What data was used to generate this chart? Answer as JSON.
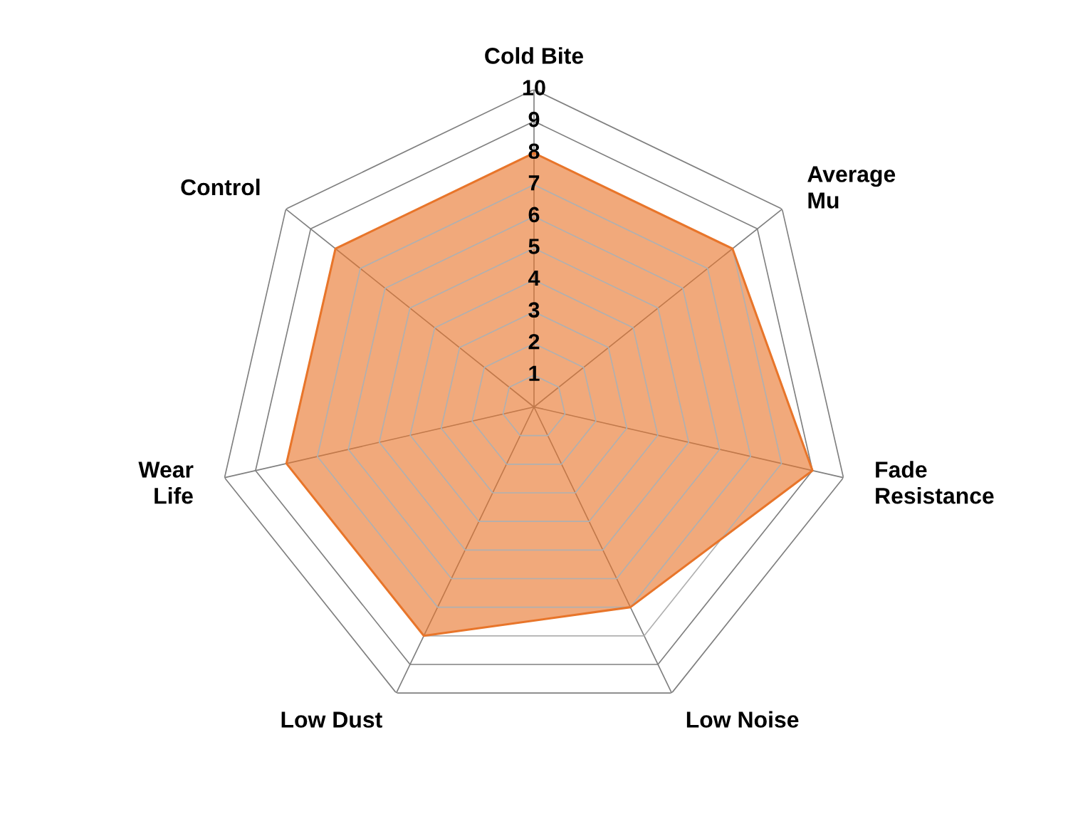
{
  "chart_data": {
    "type": "radar",
    "categories": [
      "Cold Bite",
      "Average\nMu",
      "Fade\nResistance",
      "Low Noise",
      "Low Dust",
      "Wear\nLife",
      "Control"
    ],
    "series": [
      {
        "color": "#e8752a",
        "values": [
          8,
          8,
          9,
          7,
          8,
          8,
          8
        ]
      }
    ],
    "ylim": [
      0,
      10
    ],
    "yticks": [
      1,
      2,
      3,
      4,
      5,
      6,
      7,
      8,
      9,
      10
    ],
    "grid": true,
    "marker": "none",
    "line_style": "solid"
  }
}
